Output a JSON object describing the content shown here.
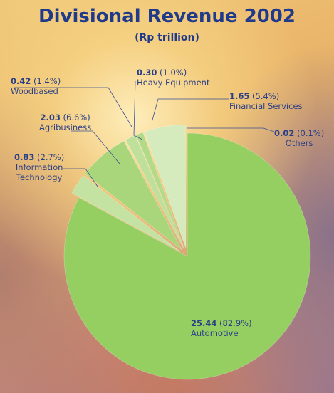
{
  "chart_data": {
    "type": "pie",
    "title": "Divisional Revenue 2002",
    "subtitle": "(Rp trillion)",
    "slices": [
      {
        "name": "Automotive",
        "value": 25.44,
        "value_label": "25.44",
        "percent_label": "(82.9%)",
        "color": "#96cf61"
      },
      {
        "name": "Information Technology",
        "value": 0.83,
        "value_label": "0.83",
        "percent_label": "(2.7%)",
        "color": "#c4e3a2"
      },
      {
        "name": "Agribusiness",
        "value": 2.03,
        "value_label": "2.03",
        "percent_label": "(6.6%)",
        "color": "#a9d67b"
      },
      {
        "name": "Woodbased",
        "value": 0.42,
        "value_label": "0.42",
        "percent_label": "(1.4%)",
        "color": "#bfe09b"
      },
      {
        "name": "Heavy Equipment",
        "value": 0.3,
        "value_label": "0.30",
        "percent_label": "(1.0%)",
        "color": "#b2da88"
      },
      {
        "name": "Financial Services",
        "value": 1.65,
        "value_label": "1.65",
        "percent_label": "(5.4%)",
        "color": "#d6ebbd"
      },
      {
        "name": "Others",
        "value": 0.02,
        "value_label": "0.02",
        "percent_label": "(0.1%)",
        "color": "#e6f3d6"
      }
    ],
    "label_color": "#2b3f86",
    "title_color": "#1f3a8a",
    "leader_color": "#3a4f95"
  }
}
